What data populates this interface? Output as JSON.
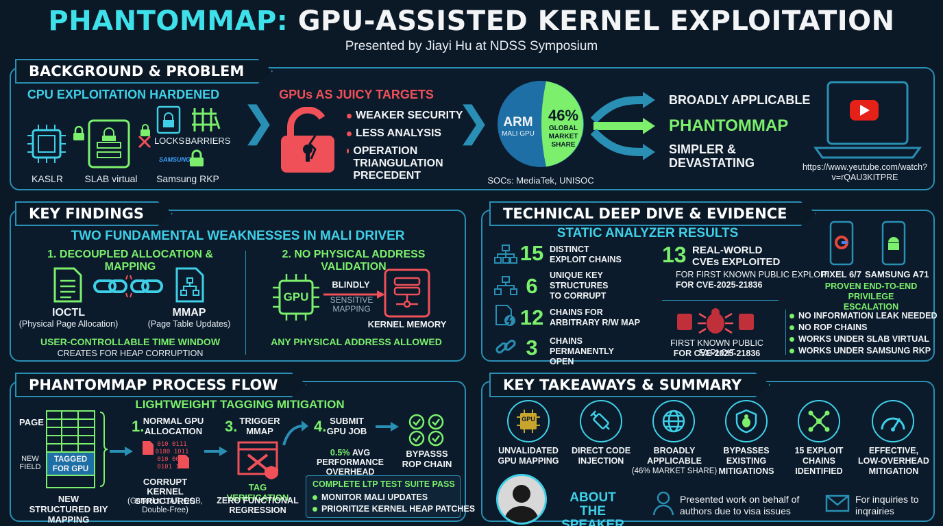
{
  "header": {
    "title_a": "PHANTOMMAP:",
    "title_b": "GPU-ASSISTED KERNEL EXPLOITATION",
    "subtitle": "Presented by Jiayi Hu at NDSS Symposium"
  },
  "background": {
    "heading": "BACKGROUND & PROBLEM",
    "cpu_title": "CPU EXPLOITATION HARDENED",
    "labels": [
      "KASLR",
      "SLAB virtual",
      "LOCKS",
      "BARRIERS",
      "Samsung RKP"
    ],
    "samsung_logo": "SAMSUNG",
    "gpu_title": "GPUs AS JUICY TARGETS",
    "gpu_points": [
      "WEAKER SECURITY",
      "LESS ANALYSIS",
      "OPERATION TRIANGULATION PRECEDENT"
    ],
    "pie": {
      "arm": "ARM",
      "mali": "MALI GPU",
      "pct": "46%",
      "share": "GLOBAL MARKET SHARE",
      "socs": "SOCs: MediaTek, UNISOC",
      "value": 0.46
    },
    "outcomes": [
      "BROADLY APPLICABLE",
      "PHANTOMMAP",
      "SIMPLER & DEVASTATING"
    ],
    "video_url": "https://www.yeutube.com/watch?v=rQAU3KITPRE"
  },
  "findings": {
    "heading": "KEY FINDINGS",
    "title": "TWO FUNDAMENTAL WEAKNESSES IN MALI DRIVER",
    "w1_title": "1. DECOUPLED ALLOCATION & MAPPING",
    "ioctl": "IOCTL",
    "ioctl_sub": "(Physical Page Allocation)",
    "mmap": "MMAP",
    "mmap_sub": "(Page Table Updates)",
    "w1_foot_a": "USER-CONTROLLABLE TIME WINDOW",
    "w1_foot_b": "CREATES FOR HEAP CORRUPTION",
    "w2_title": "2. NO PHYSICAL ADDRESS VALIDATION",
    "gpu": "GPU",
    "blindly": "BLINDLY",
    "sensitive": "SENSITIVE MAPPING",
    "kernel_mem": "KERNEL MEMORY",
    "w2_foot": "ANY PHYSICAL ADDRESS ALLOWED"
  },
  "deep_dive": {
    "heading": "TECHNICAL DEEP DIVE & EVIDENCE",
    "analyzer_title": "STATIC ANALYZER RESULTS",
    "stats": [
      {
        "num": "15",
        "label": "DISTINCT EXPLOIT CHAINS"
      },
      {
        "num": "6",
        "label": "UNIQUE KEY STRUCTURES TO CORRUPT"
      },
      {
        "num": "12",
        "label": "CHAINS FOR ARBITRARY R/W MAP"
      },
      {
        "num": "3",
        "label": "CHAINS PERMANENTLY OPEN"
      }
    ],
    "cve_num": "13",
    "cve_label": "REAL-WORLD CVEs EXPLOITED",
    "cve_note_a": "FOR FIRST KNOWN PUBLIC EXPLOIT",
    "cve_note_b": "FOR CVE-2025-21836",
    "cve_note2_a": "FIRST KNOWN PUBLIC EXPLOIT",
    "cve_note2_b": "FOR CVE-2025-21836",
    "device1": "PIXEL 6/7",
    "device2": "SAMSUNG A71",
    "proven": "PROVEN END-TO-END PRIVILEGE ESCALATION",
    "checks": [
      "NO INFORMATION LEAK NEEDED",
      "NO ROP CHAINS",
      "WORKS UNDER SLAB VIRTUAL",
      "WORKS UNDER SAMSUNG RKP"
    ]
  },
  "process": {
    "heading": "PHANTOMMAP PROCESS FLOW",
    "mitigation": "LIGHTWEIGHT TAGGING MITIGATION",
    "page": "PAGE",
    "new_field": "NEW FIELD",
    "tagged": "TAGGED FOR GPU",
    "new_struct": "NEW STRUCTURED BIY MAPPING",
    "s1_num": "1.",
    "s1": "NORMAL GPU ALLOCATION",
    "bits": [
      "010 0111",
      "0180 1011",
      "010 0079",
      "0101 101"
    ],
    "corrupt": "CORRUPT KERNEL STRUCTURES",
    "corrupt_sub": "(Generics UAF, OOB, Double-Free)",
    "s3_num": "3.",
    "s3": "TRIGGER MMAP",
    "tag_verif": "TAG VERIFICATION",
    "zero_reg": "ZERO FUNCTIONAL REGRESSION",
    "s4_num": "4.",
    "s4": "SUBMIT GPU JOB",
    "overhead_pct": "0.5%",
    "overhead": "AVG PERFORMANCE OVERHEAD",
    "bypass": "BYPASSS ROP CHAIN",
    "ltp": "COMPLETE LTP TEST SUITE PASS",
    "recs": [
      "MONITOR MALI UPDATES",
      "PRIORITIZE KERNEL HEAP PATCHES"
    ]
  },
  "takeaways": {
    "heading": "KEY TAKEAWAYS & SUMMARY",
    "items": [
      {
        "icon": "gpu-chip-icon",
        "l1": "UNVALIDATED",
        "l2": "GPU MAPPING",
        "l3": ""
      },
      {
        "icon": "syringe-icon",
        "l1": "DIRECT CODE",
        "l2": "INJECTION",
        "l3": ""
      },
      {
        "icon": "globe-icon",
        "l1": "BROADLY",
        "l2": "APPLICABLE",
        "l3": "(46% MARKET SHARE)"
      },
      {
        "icon": "bug-shield-icon",
        "l1": "BYPASSES",
        "l2": "EXISTING",
        "l3": "MITIGATIONS"
      },
      {
        "icon": "network-icon",
        "l1": "15 EXPLOIT",
        "l2": "CHAINS",
        "l3": "IDENTIFIED"
      },
      {
        "icon": "gauge-icon",
        "l1": "EFFECTIVE,",
        "l2": "LOW-OVERHEAD",
        "l3": "MITIGATION"
      }
    ],
    "gpu_chip_text": "GPU",
    "about": "ABOUT THE SPEAKER",
    "presented": "Presented work on behalf of authors due to visa issues",
    "inquiries": "For inquiries to inqrairies"
  },
  "colors": {
    "accent": "#3fd0e8",
    "green": "#7cf06c",
    "red": "#f05058",
    "border": "#2a8fb4"
  }
}
